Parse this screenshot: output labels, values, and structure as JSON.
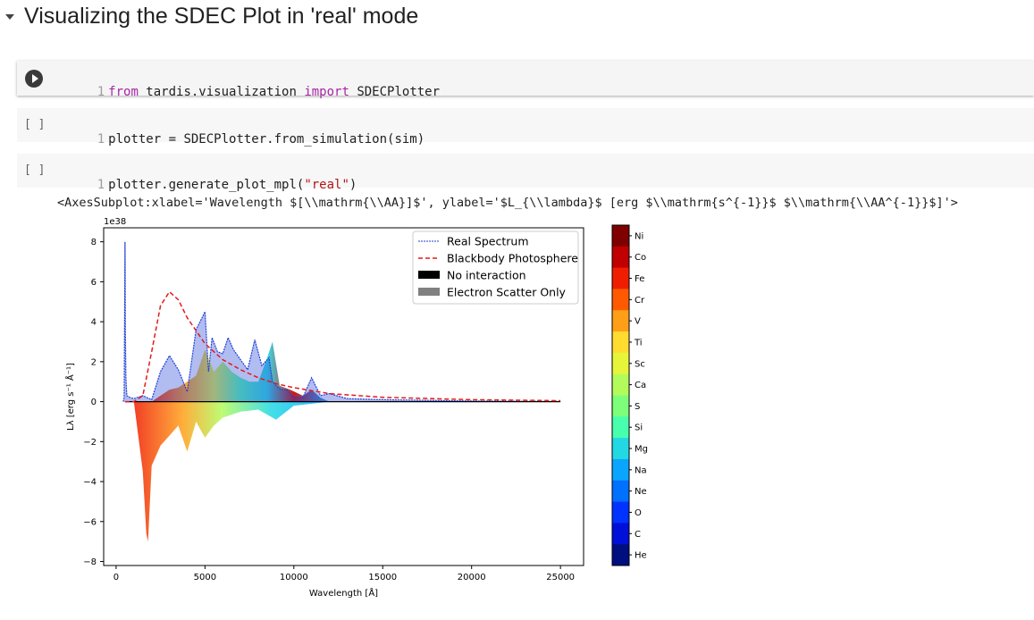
{
  "section": {
    "title": "Visualizing the SDEC Plot in 'real' mode"
  },
  "cells": [
    {
      "bracket": "",
      "lineno": "1",
      "tokens": [
        {
          "t": "from",
          "c": "kw"
        },
        {
          "t": " tardis.visualization ",
          "c": ""
        },
        {
          "t": "import",
          "c": "kw"
        },
        {
          "t": " SDECPlotter",
          "c": ""
        }
      ]
    },
    {
      "bracket": "[ ]",
      "lineno": "1",
      "tokens": [
        {
          "t": "plotter = SDECPlotter.from_simulation(sim)",
          "c": ""
        }
      ]
    },
    {
      "bracket": "[ ]",
      "lineno": "1",
      "tokens": [
        {
          "t": "plotter.generate_plot_mpl(",
          "c": ""
        },
        {
          "t": "\"real\"",
          "c": "str"
        },
        {
          "t": ")",
          "c": ""
        }
      ]
    }
  ],
  "output": {
    "text": "<AxesSubplot:xlabel='Wavelength $[\\\\mathrm{\\\\AA}]$', ylabel='$L_{\\\\lambda}$ [erg $\\\\mathrm{s^{-1}}$ $\\\\mathrm{\\\\AA^{-1}}$]'>"
  },
  "chart_data": {
    "type": "area",
    "title": "",
    "xlabel": "Wavelength [Å]",
    "ylabel": "Lλ [erg s⁻¹ Å⁻¹]",
    "y_scale_label": "1e38",
    "xlim": [
      -700,
      26300
    ],
    "ylim": [
      -8.2,
      8.7
    ],
    "xticks": [
      0,
      5000,
      10000,
      15000,
      20000,
      25000
    ],
    "yticks": [
      -8,
      -6,
      -4,
      -2,
      0,
      2,
      4,
      6,
      8
    ],
    "legend_position": "top-right",
    "legend": [
      {
        "name": "Real Spectrum",
        "color": "#1f3fd6",
        "style": "dashed-fine"
      },
      {
        "name": "Blackbody Photosphere",
        "color": "#e31a1c",
        "style": "dashed"
      },
      {
        "name": "No interaction",
        "color": "#000000",
        "style": "patch"
      },
      {
        "name": "Electron Scatter Only",
        "color": "#808080",
        "style": "patch"
      }
    ],
    "blackbody": {
      "x": [
        500,
        1000,
        1500,
        2000,
        2500,
        3000,
        3500,
        4000,
        5000,
        6000,
        7000,
        8000,
        9000,
        10000,
        12000,
        15000,
        20000,
        25000
      ],
      "y": [
        0,
        0,
        0.3,
        2.5,
        4.8,
        5.5,
        5.1,
        4.2,
        2.9,
        2.1,
        1.6,
        1.2,
        0.9,
        0.7,
        0.4,
        0.22,
        0.1,
        0.05
      ]
    },
    "real_spectrum": {
      "x": [
        400,
        450,
        500,
        520,
        550,
        600,
        800,
        1000,
        1500,
        2000,
        2500,
        3000,
        3500,
        4000,
        4500,
        5000,
        5200,
        5400,
        5700,
        6000,
        6300,
        6600,
        7000,
        7400,
        7800,
        8200,
        8600,
        8800,
        9000,
        9300,
        9600,
        10000,
        10500,
        11000,
        11500,
        12000,
        13000,
        15000,
        20000,
        25000
      ],
      "y": [
        0,
        0.2,
        8.0,
        3.5,
        1.2,
        0.3,
        0.2,
        0.15,
        0.3,
        0.1,
        1.5,
        2.3,
        1.6,
        0.5,
        3.6,
        4.5,
        1.5,
        3.2,
        2.5,
        2.4,
        3.2,
        2.6,
        2.1,
        1.6,
        3.1,
        1.8,
        2.2,
        1.0,
        0.8,
        0.6,
        0.6,
        0.2,
        0.2,
        1.2,
        0.3,
        0.4,
        0.15,
        0.1,
        0.03,
        0.01
      ]
    },
    "absorption": {
      "x": [
        1000,
        1500,
        1700,
        1800,
        1850,
        2000,
        2500,
        3000,
        3500,
        4000,
        4500,
        5000,
        5500,
        6000,
        7000,
        8000,
        9000,
        10000,
        12000
      ],
      "y": [
        0,
        -3.5,
        -6.6,
        -7.0,
        -6.0,
        -3.2,
        -2.2,
        -1.7,
        -1.2,
        -2.5,
        -1.0,
        -1.8,
        -1.2,
        -0.8,
        -0.5,
        -0.4,
        -0.9,
        -0.2,
        0
      ]
    },
    "positive_band": {
      "x": [
        2000,
        2500,
        3000,
        3500,
        4000,
        4500,
        5000,
        5500,
        6000,
        6500,
        7000,
        7500,
        8000,
        8500,
        8800,
        9200,
        9800,
        10500,
        11000,
        11500,
        12000
      ],
      "y": [
        0,
        0.3,
        0.6,
        0.7,
        1.0,
        1.3,
        2.6,
        1.5,
        2.0,
        1.5,
        1.2,
        1.0,
        1.0,
        2.2,
        3.0,
        0.8,
        0.6,
        0.3,
        0.6,
        0.2,
        0
      ]
    },
    "colorbar": {
      "elements": [
        "Ni",
        "Co",
        "Fe",
        "Cr",
        "V",
        "Ti",
        "Sc",
        "Ca",
        "S",
        "Si",
        "Mg",
        "Na",
        "Ne",
        "O",
        "C",
        "He"
      ],
      "colors": [
        "#7f0000",
        "#c00000",
        "#f01e00",
        "#ff5a00",
        "#ff9f18",
        "#ffdc2f",
        "#e6f53a",
        "#b3fb5b",
        "#7dff7a",
        "#48ffad",
        "#22d9e3",
        "#0aa5ff",
        "#0070ff",
        "#0033ff",
        "#0010d8",
        "#000f80"
      ]
    }
  }
}
